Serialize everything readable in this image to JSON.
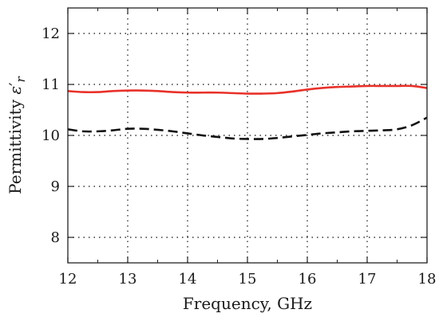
{
  "chart_data": {
    "type": "line",
    "xlabel": "Frequency, GHz",
    "ylabel": "Permittivity ε′r",
    "ylabel_main": "Permittivity ",
    "ylabel_symbol": "ε",
    "ylabel_prime": "′",
    "ylabel_sub": "r",
    "xlim": [
      12,
      18
    ],
    "ylim": [
      7.5,
      12.5
    ],
    "xticks": [
      12,
      13,
      14,
      15,
      16,
      17,
      18
    ],
    "yticks": [
      8,
      9,
      10,
      11,
      12
    ],
    "grid": true,
    "legend": "none",
    "series": [
      {
        "color": "#e8312a",
        "style": "solid",
        "x": [
          12.0,
          12.25,
          12.5,
          12.75,
          13.0,
          13.25,
          13.5,
          13.75,
          14.0,
          14.25,
          14.5,
          14.75,
          15.0,
          15.25,
          15.5,
          15.75,
          16.0,
          16.25,
          16.5,
          16.75,
          17.0,
          17.25,
          17.5,
          17.75,
          18.0
        ],
        "y": [
          10.87,
          10.85,
          10.85,
          10.87,
          10.88,
          10.88,
          10.87,
          10.85,
          10.84,
          10.84,
          10.84,
          10.83,
          10.82,
          10.82,
          10.83,
          10.86,
          10.9,
          10.93,
          10.95,
          10.96,
          10.97,
          10.97,
          10.97,
          10.97,
          10.93
        ]
      },
      {
        "color": "#111111",
        "style": "dashed",
        "x": [
          12.0,
          12.25,
          12.5,
          12.75,
          13.0,
          13.25,
          13.5,
          13.75,
          14.0,
          14.25,
          14.5,
          14.75,
          15.0,
          15.25,
          15.5,
          15.75,
          16.0,
          16.25,
          16.5,
          16.75,
          17.0,
          17.25,
          17.5,
          17.75,
          18.0
        ],
        "y": [
          10.12,
          10.08,
          10.08,
          10.1,
          10.13,
          10.13,
          10.11,
          10.08,
          10.04,
          10.0,
          9.97,
          9.94,
          9.93,
          9.93,
          9.95,
          9.98,
          10.01,
          10.04,
          10.06,
          10.08,
          10.09,
          10.1,
          10.12,
          10.2,
          10.35
        ]
      }
    ]
  }
}
